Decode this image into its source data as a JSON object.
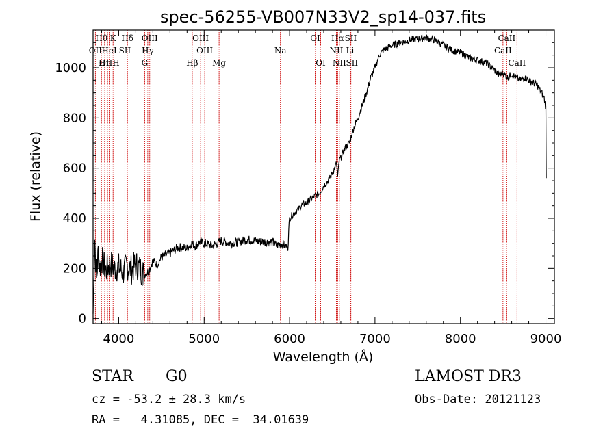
{
  "chart_data": {
    "type": "line",
    "title": "spec-56255-VB007N33V2_sp14-037.fits",
    "xlabel": "Wavelength (Å)",
    "ylabel": "Flux (relative)",
    "xlim": [
      3700,
      9100
    ],
    "ylim": [
      -20,
      1150
    ],
    "xticks": [
      4000,
      5000,
      6000,
      7000,
      8000,
      9000
    ],
    "yticks": [
      0,
      200,
      400,
      600,
      800,
      1000
    ],
    "spectrum": {
      "name": "flux",
      "x": [
        3700,
        3720,
        3740,
        3760,
        3780,
        3800,
        3850,
        3900,
        3950,
        4000,
        4050,
        4100,
        4150,
        4200,
        4250,
        4300,
        4350,
        4400,
        4450,
        4500,
        4600,
        4700,
        4800,
        4850,
        4900,
        4950,
        5000,
        5050,
        5100,
        5200,
        5300,
        5400,
        5500,
        5600,
        5700,
        5800,
        5850,
        5900,
        5950,
        5980,
        6000,
        6050,
        6100,
        6150,
        6200,
        6250,
        6300,
        6350,
        6400,
        6450,
        6500,
        6530,
        6550,
        6563,
        6580,
        6600,
        6650,
        6700,
        6750,
        6800,
        6850,
        6900,
        6950,
        7000,
        7050,
        7100,
        7200,
        7300,
        7400,
        7500,
        7600,
        7700,
        7750,
        7800,
        7900,
        8000,
        8100,
        8200,
        8300,
        8400,
        8450,
        8500,
        8550,
        8600,
        8650,
        8700,
        8750,
        8800,
        8850,
        8900,
        8950,
        8980,
        9000,
        9005
      ],
      "y": [
        20,
        320,
        150,
        270,
        200,
        240,
        190,
        220,
        200,
        205,
        185,
        210,
        195,
        215,
        200,
        175,
        190,
        230,
        215,
        245,
        260,
        285,
        280,
        300,
        290,
        305,
        300,
        295,
        290,
        310,
        300,
        305,
        315,
        310,
        305,
        305,
        290,
        300,
        290,
        285,
        400,
        420,
        435,
        455,
        460,
        475,
        490,
        500,
        530,
        550,
        580,
        600,
        620,
        560,
        630,
        640,
        680,
        700,
        760,
        800,
        850,
        900,
        960,
        1000,
        1050,
        1070,
        1090,
        1100,
        1110,
        1115,
        1120,
        1110,
        1100,
        1090,
        1070,
        1060,
        1040,
        1030,
        1020,
        990,
        970,
        980,
        960,
        975,
        960,
        950,
        960,
        950,
        940,
        930,
        900,
        880,
        840,
        560
      ]
    },
    "spectral_lines": [
      {
        "label": "Hθ",
        "wavelength": 3798,
        "row": 0
      },
      {
        "label": "K",
        "wavelength": 3934,
        "row": 0
      },
      {
        "label": "Hδ",
        "wavelength": 4102,
        "row": 0
      },
      {
        "label": "OIII",
        "wavelength": 4363,
        "row": 0
      },
      {
        "label": "OIII",
        "wavelength": 4959,
        "row": 0
      },
      {
        "label": "OI",
        "wavelength": 6300,
        "row": 0
      },
      {
        "label": "Hα",
        "wavelength": 6563,
        "row": 0
      },
      {
        "label": "SII",
        "wavelength": 6716,
        "row": 0
      },
      {
        "label": "CaII",
        "wavelength": 8542,
        "row": 0
      },
      {
        "label": "OII",
        "wavelength": 3727,
        "row": 1
      },
      {
        "label": "HeI",
        "wavelength": 3889,
        "row": 1
      },
      {
        "label": "SII",
        "wavelength": 4072,
        "row": 1
      },
      {
        "label": "Hγ",
        "wavelength": 4340,
        "row": 1
      },
      {
        "label": "OIII",
        "wavelength": 5007,
        "row": 1
      },
      {
        "label": "Na",
        "wavelength": 5893,
        "row": 1
      },
      {
        "label": "NII",
        "wavelength": 6548,
        "row": 1
      },
      {
        "label": "Li",
        "wavelength": 6708,
        "row": 1
      },
      {
        "label": "CaII",
        "wavelength": 8498,
        "row": 1
      },
      {
        "label": "OIII",
        "wavelength": 3869,
        "row": 2
      },
      {
        "label": "Hη",
        "wavelength": 3835,
        "row": 2
      },
      {
        "label": "H",
        "wavelength": 3968,
        "row": 2
      },
      {
        "label": "G",
        "wavelength": 4304,
        "row": 2
      },
      {
        "label": "Hβ",
        "wavelength": 4861,
        "row": 2
      },
      {
        "label": "Mg",
        "wavelength": 5175,
        "row": 2
      },
      {
        "label": "OI",
        "wavelength": 6364,
        "row": 2
      },
      {
        "label": "NII",
        "wavelength": 6583,
        "row": 2
      },
      {
        "label": "SII",
        "wavelength": 6731,
        "row": 2
      },
      {
        "label": "CaII",
        "wavelength": 8662,
        "row": 2
      }
    ],
    "colors": {
      "spectral_line": "#cc0000",
      "spectrum": "#000000",
      "axes": "#000000"
    }
  },
  "footer": {
    "object_class": "STAR",
    "subclass": "G0",
    "survey": "LAMOST DR3",
    "cz": "cz = -53.2 ± 28.3 km/s",
    "obs_date": "Obs-Date: 20121123",
    "radec": "RA =   4.31085, DEC =  34.01639"
  }
}
